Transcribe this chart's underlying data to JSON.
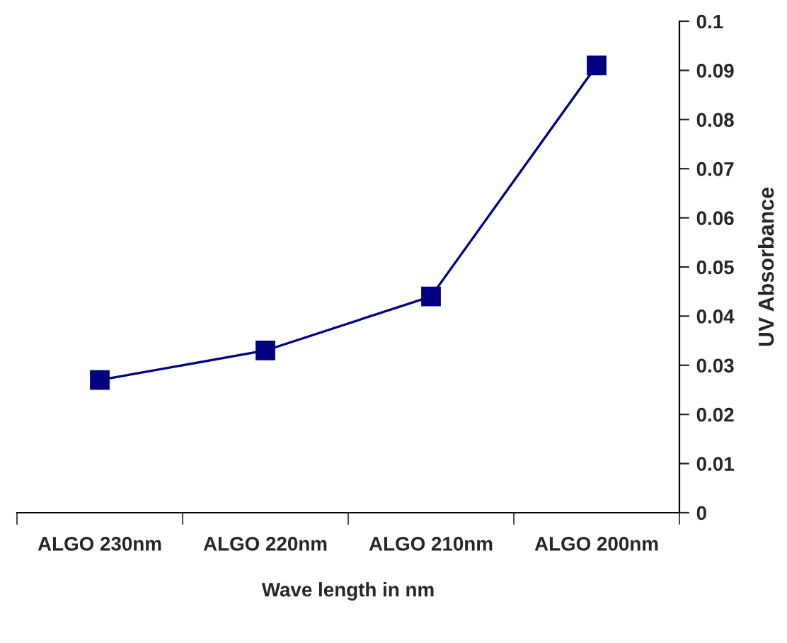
{
  "chart_data": {
    "type": "line",
    "xlabel": "Wave length in nm",
    "ylabel": "UV Absorbance",
    "categories": [
      "ALGO 230nm",
      "ALGO 220nm",
      "ALGO 210nm",
      "ALGO 200nm"
    ],
    "series": [
      {
        "color": "#000080",
        "values": [
          0.027,
          0.033,
          0.044,
          0.091
        ]
      }
    ],
    "ylim": [
      0,
      0.1
    ],
    "yticks": [
      0,
      0.01,
      0.02,
      0.03,
      0.04,
      0.05,
      0.06,
      0.07,
      0.08,
      0.09,
      0.1
    ],
    "marker": "square",
    "line_style": "solid",
    "grid": false,
    "legend": false
  }
}
